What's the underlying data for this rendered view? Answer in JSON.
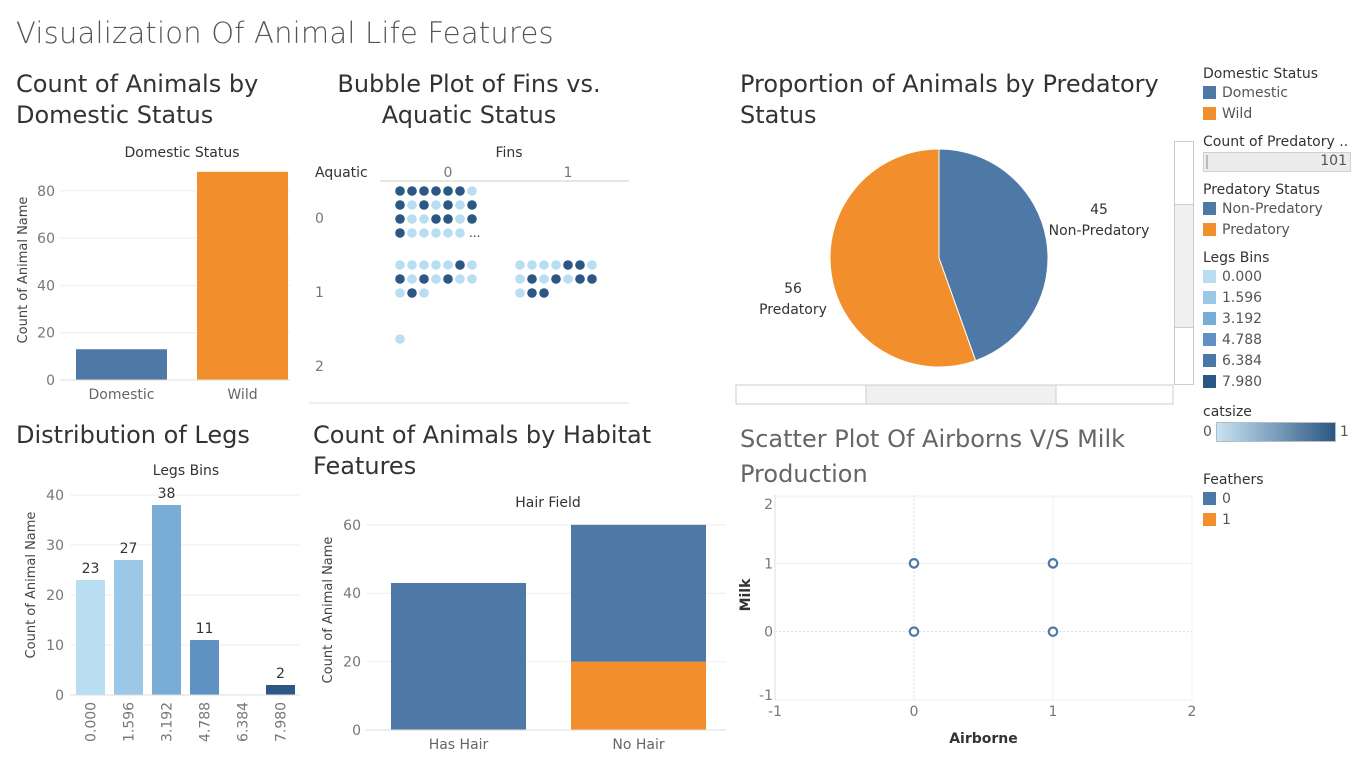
{
  "dashboard": {
    "title": "Visualization Of Animal Life Features"
  },
  "colors": {
    "blue": "#4e79a7",
    "orange": "#f28e2b",
    "lb0": "#b9ddf1",
    "lb1": "#9ac8e6",
    "lb2": "#7aadd5",
    "lb3": "#5f91c2",
    "lb4": "#4a76a8",
    "lb5": "#2a5783"
  },
  "sheets": {
    "domestic": {
      "title_line1": "Count of Animals by",
      "title_line2": "Domestic Status"
    },
    "bubble": {
      "title_line1": "Bubble Plot of Fins vs.",
      "title_line2": "Aquatic Status"
    },
    "pie": {
      "title_line1": "Proportion of Animals by Predatory",
      "title_line2": "Status"
    },
    "legs": {
      "title": "Distribution of Legs"
    },
    "habitat": {
      "title_line1": "Count of Animals by Habitat",
      "title_line2": "Features"
    },
    "scatter": {
      "title_line1": "Scatter Plot Of Airborns V/S Milk",
      "title_line2": "Production"
    }
  },
  "legends": {
    "domestic_status": {
      "title": "Domestic Status",
      "items": [
        "Domestic",
        "Wild"
      ]
    },
    "count_predatory": {
      "title": "Count of Predatory ..",
      "value": "101"
    },
    "predatory_status": {
      "title": "Predatory Status",
      "items": [
        "Non-Predatory",
        "Predatory"
      ]
    },
    "legs_bins": {
      "title": "Legs Bins",
      "items": [
        "0.000",
        "1.596",
        "3.192",
        "4.788",
        "6.384",
        "7.980"
      ]
    },
    "catsize": {
      "title": "catsize",
      "min": "0",
      "max": "1"
    },
    "feathers": {
      "title": "Feathers",
      "items": [
        "0",
        "1"
      ]
    }
  },
  "chart_data": [
    {
      "id": "domestic",
      "type": "bar",
      "header": "Domestic Status",
      "ylabel": "Count of Animal Name",
      "categories": [
        "Domestic",
        "Wild"
      ],
      "values": [
        13,
        88
      ],
      "ylim": [
        0,
        93
      ],
      "yticks": [
        "0",
        "20",
        "40",
        "60",
        "80"
      ]
    },
    {
      "id": "bubble",
      "type": "scatter",
      "header": "Fins",
      "row_label": "Aquatic",
      "columns": [
        "0",
        "1"
      ],
      "rows": [
        "0",
        "1",
        "2"
      ],
      "cells": [
        {
          "fins": 0,
          "aquatic": 0,
          "dots": [
            [
              5,
              5,
              5,
              5,
              5,
              5,
              0
            ],
            [
              5,
              0,
              5,
              0,
              5,
              0,
              5
            ],
            [
              5,
              0,
              0,
              5,
              5,
              0,
              5
            ],
            [
              5,
              0,
              0,
              0,
              0,
              0
            ]
          ],
          "ellipsis": "..."
        },
        {
          "fins": 0,
          "aquatic": 1,
          "dots": [
            [
              0,
              0,
              0,
              0,
              0,
              5,
              0
            ],
            [
              5,
              0,
              5,
              0,
              5,
              0,
              0
            ],
            [
              0,
              5,
              0
            ]
          ]
        },
        {
          "fins": 1,
          "aquatic": 1,
          "dots": [
            [
              0,
              0,
              0,
              0,
              5,
              5,
              0
            ],
            [
              0,
              5,
              0,
              5,
              0,
              5,
              5
            ],
            [
              0,
              5,
              5
            ]
          ]
        },
        {
          "fins": 0,
          "aquatic": 2,
          "dots": [
            [
              0
            ]
          ]
        }
      ]
    },
    {
      "id": "pie",
      "type": "pie",
      "slices": [
        {
          "label": "Non-Predatory",
          "value": 45
        },
        {
          "label": "Predatory",
          "value": 56
        }
      ]
    },
    {
      "id": "legs",
      "type": "bar",
      "header": "Legs Bins",
      "ylabel": "Count of Animal Name",
      "categories": [
        "0.000",
        "1.596",
        "3.192",
        "4.788",
        "6.384",
        "7.980"
      ],
      "values": [
        23,
        27,
        38,
        11,
        0,
        2
      ],
      "labels": [
        "23",
        "27",
        "38",
        "11",
        "",
        "2"
      ],
      "ylim": [
        0,
        42
      ],
      "yticks": [
        "0",
        "10",
        "20",
        "30",
        "40"
      ]
    },
    {
      "id": "habitat",
      "type": "bar",
      "header": "Hair Field",
      "ylabel": "Count of Animal Name",
      "categories": [
        "Has Hair",
        "No Hair"
      ],
      "series": [
        {
          "values": [
            43,
            40
          ]
        },
        {
          "values": [
            0,
            20
          ]
        }
      ],
      "ylim": [
        0,
        62
      ],
      "yticks": [
        "0",
        "20",
        "40",
        "60"
      ]
    },
    {
      "id": "scatter",
      "type": "scatter",
      "xlabel": "Airborne",
      "ylabel": "Milk",
      "xlim": [
        -1,
        2
      ],
      "ylim": [
        -1,
        2
      ],
      "xticks": [
        "-1",
        "0",
        "1",
        "2"
      ],
      "yticks": [
        "-1",
        "0",
        "1",
        "2"
      ],
      "points": [
        [
          0,
          1
        ],
        [
          1,
          1
        ],
        [
          0,
          0
        ],
        [
          1,
          0
        ]
      ]
    }
  ]
}
